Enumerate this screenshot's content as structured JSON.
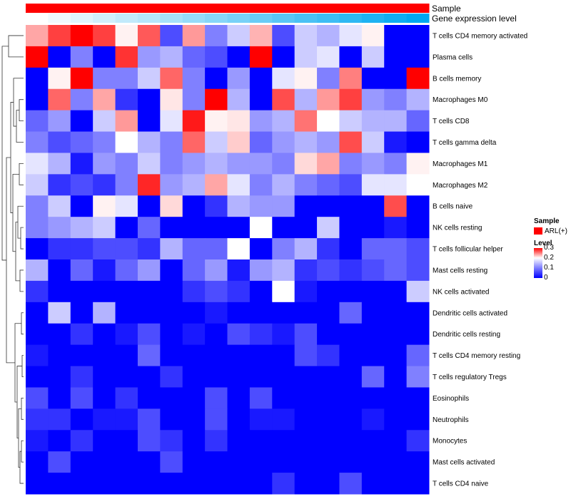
{
  "chart_data": {
    "type": "heatmap",
    "annotation_tracks": [
      {
        "name": "Sample",
        "color": "#ff0000",
        "values": [
          "ARL(+)",
          "ARL(+)",
          "ARL(+)",
          "ARL(+)",
          "ARL(+)",
          "ARL(+)",
          "ARL(+)",
          "ARL(+)",
          "ARL(+)",
          "ARL(+)",
          "ARL(+)",
          "ARL(+)",
          "ARL(+)",
          "ARL(+)",
          "ARL(+)",
          "ARL(+)",
          "ARL(+)",
          "ARL(+)"
        ]
      },
      {
        "name": "Gene expression level",
        "color": "#00a8f0",
        "values": [
          0.0,
          0.06,
          0.12,
          0.18,
          0.24,
          0.29,
          0.35,
          0.41,
          0.47,
          0.53,
          0.59,
          0.65,
          0.71,
          0.76,
          0.82,
          0.88,
          0.94,
          1.0
        ]
      }
    ],
    "rows": [
      "T cells CD4 memory activated",
      "Plasma cells",
      "B cells memory",
      "Macrophages M0",
      "T cells CD8",
      "T cells gamma delta",
      "Macrophages M1",
      "Macrophages M2",
      "B cells naive",
      "NK cells resting",
      "T cells follicular helper",
      "Mast cells resting",
      "NK cells activated",
      "Dendritic cells activated",
      "Dendritic cells resting",
      "T cells CD4 memory resting",
      "T cells regulatory  Tregs",
      "Eosinophils",
      "Neutrophils",
      "Monocytes",
      "Mast cells activated",
      "T cells CD4 naive"
    ],
    "values": [
      [
        0.17,
        0.25,
        0.3,
        0.25,
        0.11,
        0.23,
        0.03,
        0.18,
        0.05,
        0.08,
        0.16,
        0.03,
        0.08,
        0.07,
        0.09,
        0.11,
        0.0,
        0.0
      ],
      [
        0.3,
        0.0,
        0.05,
        0.0,
        0.26,
        0.06,
        0.07,
        0.04,
        0.03,
        0.0,
        0.3,
        0.0,
        0.08,
        0.09,
        0.0,
        0.08,
        0.0,
        0.0
      ],
      [
        0.0,
        0.11,
        0.3,
        0.05,
        0.05,
        0.08,
        0.22,
        0.05,
        0.0,
        0.06,
        0.0,
        0.09,
        0.11,
        0.05,
        0.2,
        0.0,
        0.0,
        0.3
      ],
      [
        0.0,
        0.22,
        0.05,
        0.17,
        0.02,
        0.0,
        0.12,
        0.05,
        0.3,
        0.07,
        0.0,
        0.24,
        0.07,
        0.18,
        0.25,
        0.06,
        0.05,
        0.07
      ],
      [
        0.04,
        0.06,
        0.0,
        0.08,
        0.18,
        0.0,
        0.09,
        0.28,
        0.11,
        0.12,
        0.06,
        0.07,
        0.21,
        0.1,
        0.08,
        0.07,
        0.07,
        0.04
      ],
      [
        0.05,
        0.03,
        0.04,
        0.05,
        0.1,
        0.07,
        0.05,
        0.22,
        0.08,
        0.14,
        0.04,
        0.06,
        0.07,
        0.06,
        0.24,
        0.08,
        0.01,
        0.0
      ],
      [
        0.09,
        0.07,
        0.01,
        0.06,
        0.05,
        0.08,
        0.05,
        0.06,
        0.07,
        0.06,
        0.06,
        0.05,
        0.13,
        0.17,
        0.05,
        0.06,
        0.05,
        0.11
      ],
      [
        0.08,
        0.02,
        0.03,
        0.02,
        0.05,
        0.27,
        0.06,
        0.07,
        0.17,
        0.09,
        0.05,
        0.07,
        0.05,
        0.04,
        0.03,
        0.09,
        0.09,
        0.1
      ],
      [
        0.05,
        0.08,
        0.0,
        0.11,
        0.09,
        0.0,
        0.13,
        0.0,
        0.02,
        0.07,
        0.06,
        0.06,
        0.0,
        0.0,
        0.0,
        0.0,
        0.24,
        0.0
      ],
      [
        0.05,
        0.06,
        0.07,
        0.08,
        0.0,
        0.04,
        0.0,
        0.0,
        0.0,
        0.0,
        0.1,
        0.0,
        0.0,
        0.08,
        0.0,
        0.0,
        0.01,
        0.0
      ],
      [
        0.0,
        0.02,
        0.02,
        0.03,
        0.03,
        0.02,
        0.07,
        0.04,
        0.04,
        0.1,
        0.0,
        0.05,
        0.07,
        0.02,
        0.0,
        0.04,
        0.04,
        0.03
      ],
      [
        0.07,
        0.0,
        0.04,
        0.01,
        0.04,
        0.06,
        0.0,
        0.04,
        0.06,
        0.01,
        0.06,
        0.07,
        0.02,
        0.03,
        0.02,
        0.03,
        0.04,
        0.03
      ],
      [
        0.02,
        0.0,
        0.0,
        0.0,
        0.0,
        0.0,
        0.0,
        0.02,
        0.03,
        0.02,
        0.0,
        0.1,
        0.01,
        0.0,
        0.0,
        0.0,
        0.0,
        0.08
      ],
      [
        0.0,
        0.08,
        0.0,
        0.07,
        0.0,
        0.0,
        0.0,
        0.0,
        0.01,
        0.0,
        0.0,
        0.0,
        0.0,
        0.0,
        0.04,
        0.0,
        0.0,
        0.0
      ],
      [
        0.0,
        0.0,
        0.02,
        0.0,
        0.01,
        0.03,
        0.0,
        0.01,
        0.0,
        0.03,
        0.02,
        0.01,
        0.03,
        0.0,
        0.0,
        0.0,
        0.0,
        0.0
      ],
      [
        0.01,
        0.0,
        0.0,
        0.0,
        0.0,
        0.04,
        0.0,
        0.0,
        0.0,
        0.0,
        0.0,
        0.0,
        0.03,
        0.02,
        0.0,
        0.0,
        0.0,
        0.04
      ],
      [
        0.0,
        0.0,
        0.02,
        0.0,
        0.0,
        0.0,
        0.02,
        0.0,
        0.0,
        0.0,
        0.0,
        0.0,
        0.0,
        0.0,
        0.0,
        0.04,
        0.0,
        0.05
      ],
      [
        0.03,
        0.0,
        0.03,
        0.0,
        0.02,
        0.0,
        0.0,
        0.0,
        0.03,
        0.0,
        0.03,
        0.0,
        0.0,
        0.0,
        0.0,
        0.0,
        0.0,
        0.0
      ],
      [
        0.02,
        0.02,
        0.0,
        0.01,
        0.01,
        0.03,
        0.0,
        0.0,
        0.03,
        0.0,
        0.01,
        0.01,
        0.0,
        0.0,
        0.0,
        0.01,
        0.0,
        0.0
      ],
      [
        0.01,
        0.0,
        0.02,
        0.0,
        0.0,
        0.03,
        0.02,
        0.0,
        0.02,
        0.0,
        0.0,
        0.0,
        0.0,
        0.0,
        0.0,
        0.0,
        0.0,
        0.02
      ],
      [
        0.0,
        0.03,
        0.0,
        0.0,
        0.0,
        0.0,
        0.03,
        0.0,
        0.0,
        0.0,
        0.0,
        0.0,
        0.0,
        0.0,
        0.0,
        0.0,
        0.0,
        0.0
      ],
      [
        0.0,
        0.0,
        0.0,
        0.0,
        0.0,
        0.0,
        0.0,
        0.0,
        0.0,
        0.0,
        0.0,
        0.02,
        0.0,
        0.0,
        0.03,
        0.0,
        0.0,
        0.0
      ]
    ],
    "color_scale": {
      "min": 0,
      "mid": 0.1,
      "max": 0.3,
      "low_color": "#0000ff",
      "mid_color": "#ffffff",
      "high_color": "#ff0000"
    },
    "row_dendrogram": true,
    "column_dendrogram": false
  },
  "legend": {
    "sample_title": "Sample",
    "sample_entry": "ARL(+)",
    "sample_color": "#ff0000",
    "level_title": "Level",
    "level_ticks": [
      "0.3",
      "0.2",
      "0.1",
      "0"
    ]
  }
}
